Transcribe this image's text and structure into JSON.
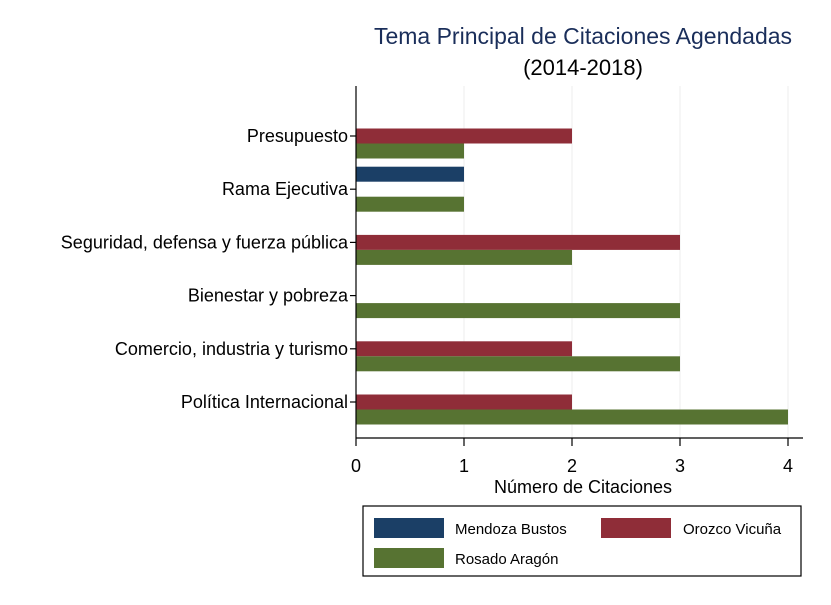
{
  "chart_data": {
    "type": "bar",
    "orientation": "horizontal",
    "title": "Tema Principal de Citaciones Agendadas",
    "subtitle": "(2014-2018)",
    "xlabel": "Número de Citaciones",
    "ylabel": "",
    "xlim": [
      0,
      4
    ],
    "xticks": [
      "0",
      "1",
      "2",
      "3",
      "4"
    ],
    "grid": true,
    "legend_position": "bottom",
    "categories": [
      "Presupuesto",
      "Rama Ejecutiva",
      "Seguridad, defensa y fuerza pública",
      "Bienestar y pobreza",
      "Comercio, industria y turismo",
      "Política Internacional"
    ],
    "series": [
      {
        "name": "Mendoza Bustos",
        "color": "#1b3f66",
        "values": [
          0,
          1,
          0,
          0,
          0,
          0
        ]
      },
      {
        "name": "Orozco Vicuña",
        "color": "#8f2d38",
        "values": [
          2,
          0,
          3,
          0,
          2,
          2
        ]
      },
      {
        "name": "Rosado Aragón",
        "color": "#577332",
        "values": [
          1,
          1,
          2,
          3,
          3,
          4
        ]
      }
    ]
  }
}
